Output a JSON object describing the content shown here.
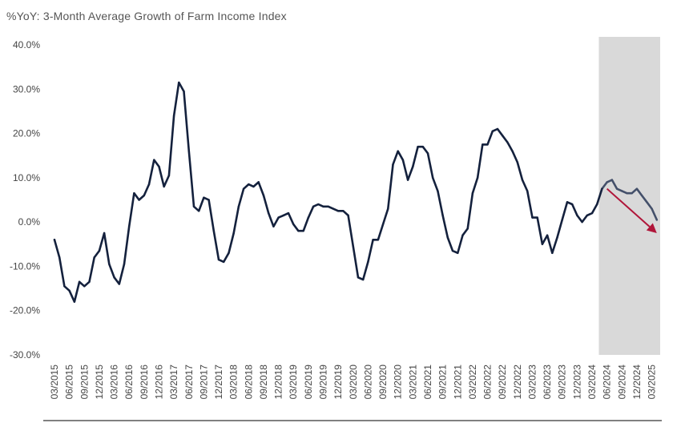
{
  "chart_data": {
    "type": "line",
    "title": "%YoY: 3-Month Average Growth of Farm Income Index",
    "xlabel": "",
    "ylabel": "",
    "ylim": [
      -30,
      40
    ],
    "y_ticks": [
      "40.0%",
      "30.0%",
      "20.0%",
      "10.0%",
      "0.0%",
      "-10.0%",
      "-20.0%",
      "-30.0%"
    ],
    "y_tick_values": [
      40,
      30,
      20,
      10,
      0,
      -10,
      -20,
      -30
    ],
    "x_range": [
      "03/2015",
      "05/2025"
    ],
    "x_ticks": [
      "03/2015",
      "06/2015",
      "09/2015",
      "12/2015",
      "03/2016",
      "06/2016",
      "09/2016",
      "12/2016",
      "03/2017",
      "06/2017",
      "09/2017",
      "12/2017",
      "03/2018",
      "06/2018",
      "09/2018",
      "12/2018",
      "03/2019",
      "06/2019",
      "09/2019",
      "12/2019",
      "03/2020",
      "06/2020",
      "09/2020",
      "12/2020",
      "03/2021",
      "06/2021",
      "09/2021",
      "12/2021",
      "03/2022",
      "06/2022",
      "09/2022",
      "12/2022",
      "03/2023",
      "06/2023",
      "09/2023",
      "12/2023",
      "03/2024",
      "06/2024",
      "09/2024",
      "12/2024",
      "03/2025"
    ],
    "grid": false,
    "forecast_shading": {
      "from": "05/2024",
      "to": "05/2025",
      "color": "#d9d9d9"
    },
    "trend_arrow": {
      "from": {
        "x": "06/2024",
        "y": 7.5
      },
      "to": {
        "x": "04/2025",
        "y": -2.5
      },
      "color": "#b0163a"
    },
    "series": [
      {
        "color": "#14213d",
        "forecast_color": "#44506a",
        "points": [
          {
            "x": "03/2015",
            "y": -4.0
          },
          {
            "x": "04/2015",
            "y": -8.0
          },
          {
            "x": "05/2015",
            "y": -14.5
          },
          {
            "x": "06/2015",
            "y": -15.5
          },
          {
            "x": "07/2015",
            "y": -18.0
          },
          {
            "x": "08/2015",
            "y": -13.5
          },
          {
            "x": "09/2015",
            "y": -14.5
          },
          {
            "x": "10/2015",
            "y": -13.5
          },
          {
            "x": "11/2015",
            "y": -8.0
          },
          {
            "x": "12/2015",
            "y": -6.5
          },
          {
            "x": "01/2016",
            "y": -2.5
          },
          {
            "x": "02/2016",
            "y": -9.5
          },
          {
            "x": "03/2016",
            "y": -12.5
          },
          {
            "x": "04/2016",
            "y": -14.0
          },
          {
            "x": "05/2016",
            "y": -9.5
          },
          {
            "x": "06/2016",
            "y": -1.0
          },
          {
            "x": "07/2016",
            "y": 6.5
          },
          {
            "x": "08/2016",
            "y": 5.0
          },
          {
            "x": "09/2016",
            "y": 6.0
          },
          {
            "x": "10/2016",
            "y": 8.5
          },
          {
            "x": "11/2016",
            "y": 14.0
          },
          {
            "x": "12/2016",
            "y": 12.5
          },
          {
            "x": "01/2017",
            "y": 8.0
          },
          {
            "x": "02/2017",
            "y": 10.5
          },
          {
            "x": "03/2017",
            "y": 24.0
          },
          {
            "x": "04/2017",
            "y": 31.5
          },
          {
            "x": "05/2017",
            "y": 29.5
          },
          {
            "x": "06/2017",
            "y": 16.0
          },
          {
            "x": "07/2017",
            "y": 3.5
          },
          {
            "x": "08/2017",
            "y": 2.5
          },
          {
            "x": "09/2017",
            "y": 5.5
          },
          {
            "x": "10/2017",
            "y": 5.0
          },
          {
            "x": "11/2017",
            "y": -2.0
          },
          {
            "x": "12/2017",
            "y": -8.5
          },
          {
            "x": "01/2018",
            "y": -9.0
          },
          {
            "x": "02/2018",
            "y": -7.0
          },
          {
            "x": "03/2018",
            "y": -2.5
          },
          {
            "x": "04/2018",
            "y": 3.5
          },
          {
            "x": "05/2018",
            "y": 7.5
          },
          {
            "x": "06/2018",
            "y": 8.5
          },
          {
            "x": "07/2018",
            "y": 8.0
          },
          {
            "x": "08/2018",
            "y": 9.0
          },
          {
            "x": "09/2018",
            "y": 6.0
          },
          {
            "x": "10/2018",
            "y": 2.0
          },
          {
            "x": "11/2018",
            "y": -1.0
          },
          {
            "x": "12/2018",
            "y": 1.0
          },
          {
            "x": "01/2019",
            "y": 1.5
          },
          {
            "x": "02/2019",
            "y": 2.0
          },
          {
            "x": "03/2019",
            "y": -0.5
          },
          {
            "x": "04/2019",
            "y": -2.0
          },
          {
            "x": "05/2019",
            "y": -2.0
          },
          {
            "x": "06/2019",
            "y": 1.0
          },
          {
            "x": "07/2019",
            "y": 3.5
          },
          {
            "x": "08/2019",
            "y": 4.0
          },
          {
            "x": "09/2019",
            "y": 3.5
          },
          {
            "x": "10/2019",
            "y": 3.5
          },
          {
            "x": "11/2019",
            "y": 3.0
          },
          {
            "x": "12/2019",
            "y": 2.5
          },
          {
            "x": "01/2020",
            "y": 2.5
          },
          {
            "x": "02/2020",
            "y": 1.5
          },
          {
            "x": "03/2020",
            "y": -5.5
          },
          {
            "x": "04/2020",
            "y": -12.5
          },
          {
            "x": "05/2020",
            "y": -13.0
          },
          {
            "x": "06/2020",
            "y": -9.0
          },
          {
            "x": "07/2020",
            "y": -4.0
          },
          {
            "x": "08/2020",
            "y": -4.0
          },
          {
            "x": "09/2020",
            "y": -0.5
          },
          {
            "x": "10/2020",
            "y": 3.0
          },
          {
            "x": "11/2020",
            "y": 13.0
          },
          {
            "x": "12/2020",
            "y": 16.0
          },
          {
            "x": "01/2021",
            "y": 14.0
          },
          {
            "x": "02/2021",
            "y": 9.5
          },
          {
            "x": "03/2021",
            "y": 12.5
          },
          {
            "x": "04/2021",
            "y": 17.0
          },
          {
            "x": "05/2021",
            "y": 17.0
          },
          {
            "x": "06/2021",
            "y": 15.5
          },
          {
            "x": "07/2021",
            "y": 10.0
          },
          {
            "x": "08/2021",
            "y": 7.0
          },
          {
            "x": "09/2021",
            "y": 1.5
          },
          {
            "x": "10/2021",
            "y": -3.5
          },
          {
            "x": "11/2021",
            "y": -6.5
          },
          {
            "x": "12/2021",
            "y": -7.0
          },
          {
            "x": "01/2022",
            "y": -3.0
          },
          {
            "x": "02/2022",
            "y": -1.5
          },
          {
            "x": "03/2022",
            "y": 6.5
          },
          {
            "x": "04/2022",
            "y": 10.0
          },
          {
            "x": "05/2022",
            "y": 17.5
          },
          {
            "x": "06/2022",
            "y": 17.5
          },
          {
            "x": "07/2022",
            "y": 20.5
          },
          {
            "x": "08/2022",
            "y": 21.0
          },
          {
            "x": "09/2022",
            "y": 19.5
          },
          {
            "x": "10/2022",
            "y": 18.0
          },
          {
            "x": "11/2022",
            "y": 16.0
          },
          {
            "x": "12/2022",
            "y": 13.5
          },
          {
            "x": "01/2023",
            "y": 9.5
          },
          {
            "x": "02/2023",
            "y": 7.0
          },
          {
            "x": "03/2023",
            "y": 1.0
          },
          {
            "x": "04/2023",
            "y": 1.0
          },
          {
            "x": "05/2023",
            "y": -5.0
          },
          {
            "x": "06/2023",
            "y": -3.0
          },
          {
            "x": "07/2023",
            "y": -7.0
          },
          {
            "x": "08/2023",
            "y": -3.5
          },
          {
            "x": "09/2023",
            "y": 0.5
          },
          {
            "x": "10/2023",
            "y": 4.5
          },
          {
            "x": "11/2023",
            "y": 4.0
          },
          {
            "x": "12/2023",
            "y": 1.5
          },
          {
            "x": "01/2024",
            "y": 0.0
          },
          {
            "x": "02/2024",
            "y": 1.5
          },
          {
            "x": "03/2024",
            "y": 2.0
          },
          {
            "x": "04/2024",
            "y": 4.0
          },
          {
            "x": "05/2024",
            "y": 7.5
          },
          {
            "x": "06/2024",
            "y": 9.0
          },
          {
            "x": "07/2024",
            "y": 9.5
          },
          {
            "x": "08/2024",
            "y": 7.5
          },
          {
            "x": "09/2024",
            "y": 7.0
          },
          {
            "x": "10/2024",
            "y": 6.5
          },
          {
            "x": "11/2024",
            "y": 6.5
          },
          {
            "x": "12/2024",
            "y": 7.5
          },
          {
            "x": "01/2025",
            "y": 6.0
          },
          {
            "x": "02/2025",
            "y": 4.5
          },
          {
            "x": "03/2025",
            "y": 3.0
          },
          {
            "x": "04/2025",
            "y": 0.5
          }
        ]
      }
    ]
  }
}
